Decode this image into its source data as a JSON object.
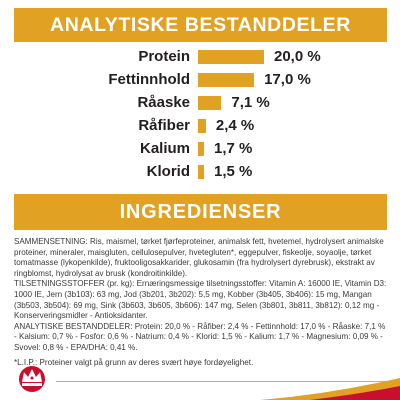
{
  "header": {
    "title": "ANALYTISKE BESTANDDELER"
  },
  "nutrients": [
    {
      "label": "Protein",
      "value": "20,0 %",
      "amount": 20.0
    },
    {
      "label": "Fettinnhold",
      "value": "17,0 %",
      "amount": 17.0
    },
    {
      "label": "Råaske",
      "value": "7,1 %",
      "amount": 7.1
    },
    {
      "label": "Råfiber",
      "value": "2,4 %",
      "amount": 2.4
    },
    {
      "label": "Kalium",
      "value": "1,7 %",
      "amount": 1.7
    },
    {
      "label": "Klorid",
      "value": "1,5 %",
      "amount": 1.5
    }
  ],
  "ingredients": {
    "title": "INGREDIENSER",
    "paragraphs": [
      "SAMMENSETNING: Ris, maismel, tørket fjørfeproteiner, animalsk fett, hvetemel, hydrolysert animalske proteiner, mineraler, maisgluten, cellulosepulver, hvetegluten*, eggepulver, fiskeolje, soyaolje, tørket tomatmasse (lykopenkilde), fruktooligosakkarider, glukosamin (fra hydrolysert dyrebrusk), ekstrakt av ringblomst, hydrolysat av brusk (kondroitinkilde).",
      "TILSETNINGSSTOFFER (pr. kg): Ernæringsmessige tilsetningsstoffer: Vitamin A: 16000 IE, Vitamin D3: 1000 IE, Jern (3b103): 63 mg, Jod (3b201, 3b202): 5,5 mg, Kobber (3b405, 3b406): 15 mg, Mangan (3b503, 3b504): 69 mg, Sink (3b603, 3b605, 3b606): 147 mg, Selen (3b801, 3b811, 3b812): 0,12 mg - Konserveringsmidler - Antioksidanter.",
      "ANALYTISKE BESTANDDELER: Protein: 20,0 % - Råfiber: 2,4 % - Fettinnhold: 17,0 % - Råaske: 7,1 % - Kalsium: 0,7 % - Fosfor: 0,6 % - Natrium: 0,4 % - Klorid: 1,5 % - Kalium: 1,7 % - Magnesium: 0,09 % - Svovel: 0,8 % - EPA/DHA: 0,41 %.",
      "*L.I.P.: Proteiner valgt på grunn av deres svært høye fordøyelighet."
    ]
  },
  "colors": {
    "accent": "#e1a123",
    "brand_red": "#c8102e",
    "text": "#231f20"
  },
  "logo": {
    "name": "royal-canin-crown-logo"
  }
}
